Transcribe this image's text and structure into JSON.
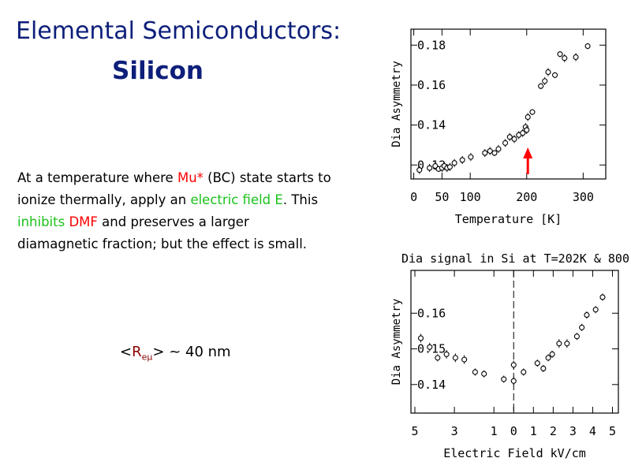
{
  "slide": {
    "title": "Elemental Semiconductors:",
    "subtitle": "Silicon",
    "paragraph": {
      "p1": "At a temperature where ",
      "mu": "Mu*",
      "p2": " (BC) state starts to ionize thermally, apply an ",
      "field": "electric field E",
      "p3": ".  This ",
      "inhibits": "inhibits",
      "p4": " ",
      "dmf": "DMF",
      "p5": " and preserves a larger diamagnetic fraction; but the effect is small."
    },
    "radius": {
      "open": "<",
      "sym": "R",
      "sub": "eμ",
      "close": "> ~ 40 nm"
    }
  },
  "colors": {
    "title": "#0d1f7a",
    "highlight_red": "#ff0000",
    "highlight_green": "#1ac21a",
    "arrow": "#ff0000"
  },
  "chart_data": [
    {
      "type": "scatter",
      "title": "",
      "xlabel": "Temperature [K]",
      "ylabel": "Dia Asymmetry",
      "xlim": [
        -5,
        340
      ],
      "ylim": [
        0.113,
        0.188
      ],
      "xticks": [
        0,
        50,
        100,
        200,
        300
      ],
      "xtick_labels": [
        "0",
        "50",
        "100",
        "200",
        "300"
      ],
      "yticks": [
        0.12,
        0.14,
        0.16,
        0.18
      ],
      "ytick_labels": [
        "0.12",
        "0.14",
        "0.16",
        "0.18"
      ],
      "annotation": {
        "type": "arrow",
        "x": 202
      },
      "points": [
        [
          10,
          0.1175,
          0.002
        ],
        [
          28,
          0.1185,
          0.002
        ],
        [
          38,
          0.1195,
          0.002
        ],
        [
          44,
          0.118,
          0.0015
        ],
        [
          50,
          0.1185,
          0.002
        ],
        [
          54,
          0.1195,
          0.002
        ],
        [
          59,
          0.1185,
          0.002
        ],
        [
          64,
          0.119,
          0.002
        ],
        [
          72,
          0.121,
          0.002
        ],
        [
          86,
          0.1225,
          0.002
        ],
        [
          101,
          0.124,
          0.002
        ],
        [
          126,
          0.126,
          0.002
        ],
        [
          135,
          0.127,
          0.002
        ],
        [
          143,
          0.126,
          0.0015
        ],
        [
          150,
          0.128,
          0.002
        ],
        [
          162,
          0.131,
          0.002
        ],
        [
          170,
          0.134,
          0.002
        ],
        [
          178,
          0.133,
          0.002
        ],
        [
          186,
          0.135,
          0.002
        ],
        [
          193,
          0.136,
          0.002
        ],
        [
          198,
          0.139,
          0.002
        ],
        [
          200,
          0.1375,
          0.002
        ],
        [
          202,
          0.144,
          0.002
        ],
        [
          210,
          0.1465,
          0.0015
        ],
        [
          225,
          0.1595,
          0.0015
        ],
        [
          232,
          0.162,
          0.002
        ],
        [
          238,
          0.1665,
          0.002
        ],
        [
          250,
          0.165,
          0.0015
        ],
        [
          259,
          0.1755,
          0.0015
        ],
        [
          267,
          0.1735,
          0.002
        ],
        [
          287,
          0.174,
          0.002
        ],
        [
          308,
          0.1795,
          0.0015
        ]
      ]
    },
    {
      "type": "scatter",
      "title": "Dia signal in Si at T=202K & 800",
      "xlabel": "Electric Field  kV/cm",
      "ylabel": "Dia Asymmetry",
      "xlim": [
        -5.2,
        5.3
      ],
      "ylim": [
        0.132,
        0.172
      ],
      "xticks": [
        -5,
        -3,
        -1,
        0,
        1,
        2,
        3,
        4,
        5
      ],
      "xtick_labels": [
        "5",
        "3",
        "1",
        "0",
        "1",
        "2",
        "3",
        "4",
        "5"
      ],
      "yticks": [
        0.14,
        0.15,
        0.16
      ],
      "ytick_labels": [
        "0.14",
        "0.15",
        "0.16"
      ],
      "reference_line_x": 0,
      "points": [
        [
          -4.7,
          0.153,
          0.0012
        ],
        [
          -4.25,
          0.1505,
          0.0012
        ],
        [
          -3.85,
          0.1475,
          0.001
        ],
        [
          -3.4,
          0.1485,
          0.0012
        ],
        [
          -2.95,
          0.1475,
          0.0012
        ],
        [
          -2.5,
          0.147,
          0.0012
        ],
        [
          -1.95,
          0.1435,
          0.001
        ],
        [
          -1.5,
          0.143,
          0.001
        ],
        [
          -0.5,
          0.1415,
          0.001
        ],
        [
          0,
          0.141,
          0.0012
        ],
        [
          0,
          0.1455,
          0.0012
        ],
        [
          0.5,
          0.1435,
          0.001
        ],
        [
          1.2,
          0.146,
          0.001
        ],
        [
          1.5,
          0.1445,
          0.001
        ],
        [
          1.75,
          0.1475,
          0.001
        ],
        [
          1.95,
          0.1485,
          0.001
        ],
        [
          2.3,
          0.1515,
          0.0012
        ],
        [
          2.7,
          0.1515,
          0.0012
        ],
        [
          3.2,
          0.1535,
          0.001
        ],
        [
          3.45,
          0.156,
          0.001
        ],
        [
          3.7,
          0.1595,
          0.001
        ],
        [
          4.15,
          0.161,
          0.001
        ],
        [
          4.5,
          0.1645,
          0.001
        ]
      ]
    }
  ]
}
